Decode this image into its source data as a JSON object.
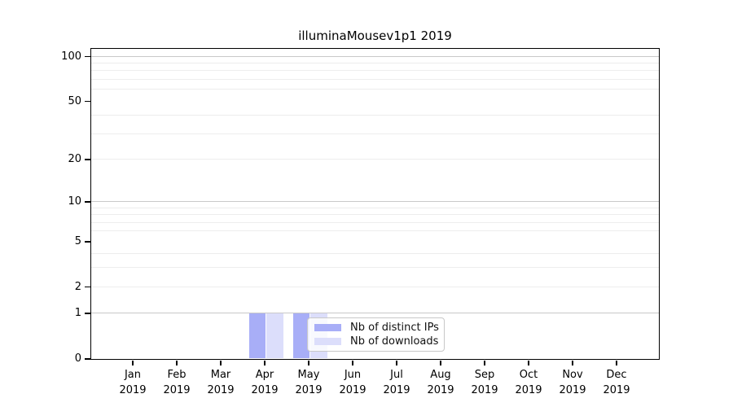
{
  "figure": {
    "title": "illuminaMousev1p1 2019"
  },
  "chart_data": {
    "type": "bar",
    "title": "illuminaMousev1p1 2019",
    "categories": [
      "Jan 2019",
      "Feb 2019",
      "Mar 2019",
      "Apr 2019",
      "May 2019",
      "Jun 2019",
      "Jul 2019",
      "Aug 2019",
      "Sep 2019",
      "Oct 2019",
      "Nov 2019",
      "Dec 2019"
    ],
    "series": [
      {
        "name": "Nb of distinct IPs",
        "color": "#a8aef7",
        "values": [
          0,
          0,
          0,
          1,
          1,
          0,
          0,
          0,
          0,
          0,
          0,
          0
        ]
      },
      {
        "name": "Nb of downloads",
        "color": "#dcdefb",
        "values": [
          0,
          0,
          0,
          1,
          1,
          0,
          0,
          0,
          0,
          0,
          0,
          0
        ]
      }
    ],
    "xlabel": "",
    "ylabel": "",
    "yscale": "log1p",
    "ylim": [
      0,
      113
    ],
    "yticks": [
      0,
      1,
      2,
      5,
      10,
      20,
      50,
      100
    ],
    "y_gridlines_major": [
      1,
      10,
      100
    ],
    "y_gridlines_minor": [
      2,
      3,
      4,
      6,
      7,
      8,
      9,
      20,
      30,
      40,
      60,
      70,
      80,
      90
    ],
    "grid": "horizontal",
    "legend": {
      "position": "lower center",
      "entries": [
        "Nb of distinct IPs",
        "Nb of downloads"
      ]
    },
    "colors": {
      "spine": "#000000",
      "grid_major": "#c9c9c9",
      "grid_minor": "#ededed",
      "legend_border": "#c8c8c8"
    }
  }
}
